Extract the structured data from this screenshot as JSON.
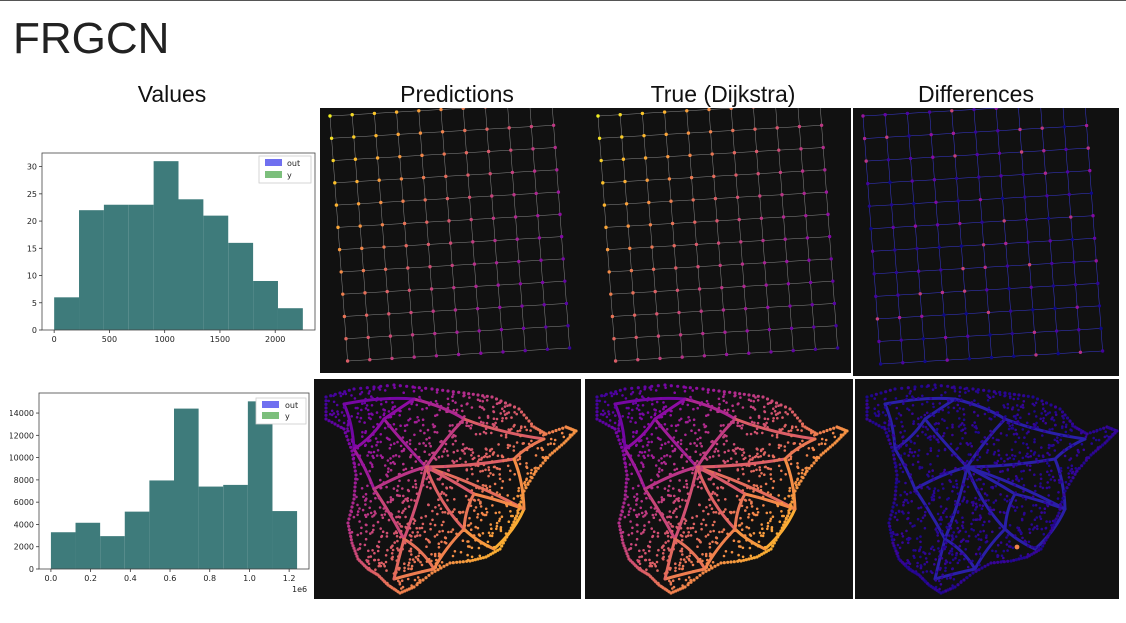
{
  "slide": {
    "title": "FRGCN",
    "columns": [
      "Values",
      "Predictions",
      "True (Dijkstra)",
      "Differences"
    ]
  },
  "colors": {
    "hist_fill": "#3e7b7b",
    "panel_bg": "#111111",
    "legend_out": "#7070f0",
    "legend_y": "#7cbf7c",
    "colormap": "plasma"
  },
  "chart_data": [
    {
      "type": "bar",
      "title": "",
      "xlabel": "",
      "ylabel": "",
      "bin_edges": [
        0,
        225,
        450,
        675,
        900,
        1125,
        1350,
        1575,
        1800,
        2025,
        2250
      ],
      "series": [
        {
          "name": "out",
          "values": [
            6,
            22,
            23,
            23,
            31,
            24,
            21,
            16,
            9,
            4
          ]
        },
        {
          "name": "y",
          "values": [
            6,
            22,
            23,
            23,
            31,
            24,
            21,
            16,
            9,
            4
          ]
        }
      ],
      "xticks": [
        "0",
        "500",
        "1000",
        "1500",
        "2000"
      ],
      "xtick_values": [
        0,
        500,
        1000,
        1500,
        2000
      ],
      "yticks": [
        "0",
        "5",
        "10",
        "15",
        "20",
        "25",
        "30"
      ],
      "ytick_values": [
        0,
        5,
        10,
        15,
        20,
        25,
        30
      ],
      "xlim": [
        -110,
        2360
      ],
      "ylim": [
        0,
        32.5
      ],
      "legend": "top-right"
    },
    {
      "type": "bar",
      "title": "",
      "xlabel": "",
      "ylabel": "",
      "x_offset_label": "1e6",
      "bin_edges": [
        0,
        0.124,
        0.248,
        0.372,
        0.496,
        0.62,
        0.744,
        0.868,
        0.992,
        1.116,
        1.24
      ],
      "series": [
        {
          "name": "out",
          "values": [
            3300,
            4150,
            2950,
            5150,
            7950,
            14400,
            7400,
            7550,
            15050,
            5200
          ]
        },
        {
          "name": "y",
          "values": [
            3300,
            4150,
            2950,
            5150,
            7950,
            14400,
            7400,
            7550,
            15050,
            5200
          ]
        }
      ],
      "xticks": [
        "0.0",
        "0.2",
        "0.4",
        "0.6",
        "0.8",
        "1.0",
        "1.2"
      ],
      "xtick_values": [
        0,
        0.2,
        0.4,
        0.6,
        0.8,
        1.0,
        1.2
      ],
      "yticks": [
        "0",
        "2000",
        "4000",
        "6000",
        "8000",
        "10000",
        "12000",
        "14000"
      ],
      "ytick_values": [
        0,
        2000,
        4000,
        6000,
        8000,
        10000,
        12000,
        14000
      ],
      "xlim": [
        -0.06,
        1.3
      ],
      "ylim": [
        0,
        15800
      ],
      "legend": "top-right"
    }
  ]
}
